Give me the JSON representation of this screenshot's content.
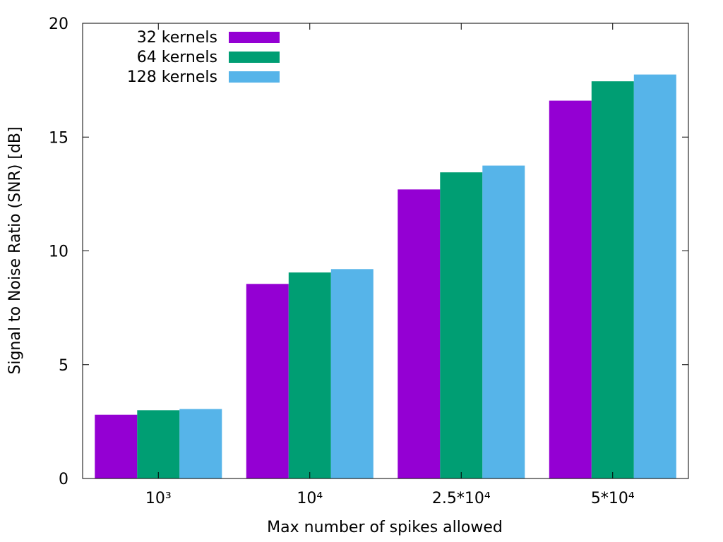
{
  "chart_data": {
    "type": "bar",
    "title": "",
    "xlabel": "Max number of spikes allowed",
    "ylabel": "Signal to Noise Ratio (SNR) [dB]",
    "ylim": [
      0,
      20
    ],
    "yticks": [
      0,
      5,
      10,
      15,
      20
    ],
    "categories": [
      "10³",
      "10⁴",
      "2.5*10⁴",
      "5*10⁴"
    ],
    "series": [
      {
        "name": "32 kernels",
        "color": "#9400d3",
        "values": [
          2.8,
          8.55,
          12.7,
          16.6
        ]
      },
      {
        "name": "64 kernels",
        "color": "#009e73",
        "values": [
          3.0,
          9.05,
          13.45,
          17.45
        ]
      },
      {
        "name": "128 kernels",
        "color": "#56b4e9",
        "values": [
          3.05,
          9.2,
          13.75,
          17.75
        ]
      }
    ],
    "grid": false,
    "legend_position": "top-left"
  }
}
